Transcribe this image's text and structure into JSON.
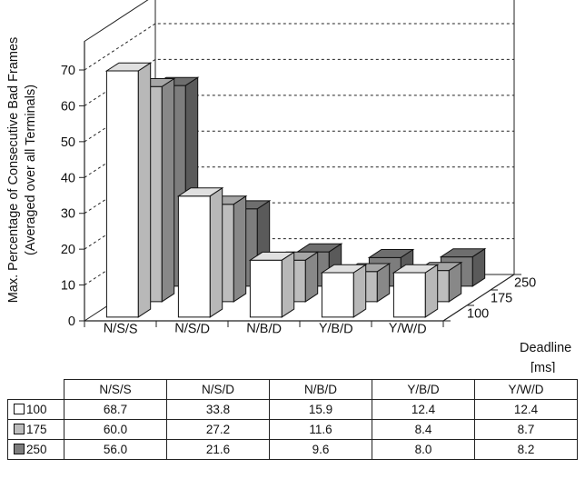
{
  "chart_data": {
    "type": "bar",
    "variant": "3d-grouped",
    "categories": [
      "N/S/S",
      "N/S/D",
      "N/B/D",
      "Y/B/D",
      "Y/W/D"
    ],
    "series": [
      {
        "name": "100",
        "values": [
          68.7,
          33.8,
          15.9,
          12.4,
          12.4
        ],
        "color": "#ffffff"
      },
      {
        "name": "175",
        "values": [
          60.0,
          27.2,
          11.6,
          8.4,
          8.7
        ],
        "color": "#bdbdbd"
      },
      {
        "name": "250",
        "values": [
          56.0,
          21.6,
          9.6,
          8.0,
          8.2
        ],
        "color": "#7d7d7d"
      }
    ],
    "ylabel_line1": "Max. Percentage of Consecutive Bad Frames",
    "ylabel_line2": "(Averaged over all Terminals)",
    "depth_axis_label": "Deadline",
    "depth_axis_unit": "[ms]",
    "yticks": [
      "0",
      "10",
      "20",
      "30",
      "40",
      "50",
      "60",
      "70"
    ],
    "ylim": [
      0,
      70
    ],
    "grid": "dashed",
    "table": {
      "header": [
        "N/S/S",
        "N/S/D",
        "N/B/D",
        "Y/B/D",
        "Y/W/D"
      ],
      "rows": [
        {
          "label": "100",
          "color": "#ffffff",
          "cells": [
            "68.7",
            "33.8",
            "15.9",
            "12.4",
            "12.4"
          ]
        },
        {
          "label": "175",
          "color": "#bdbdbd",
          "cells": [
            "60.0",
            "27.2",
            "11.6",
            "8.4",
            "8.7"
          ]
        },
        {
          "label": "250",
          "color": "#7d7d7d",
          "cells": [
            "56.0",
            "21.6",
            "9.6",
            "8.0",
            "8.2"
          ]
        }
      ]
    }
  }
}
